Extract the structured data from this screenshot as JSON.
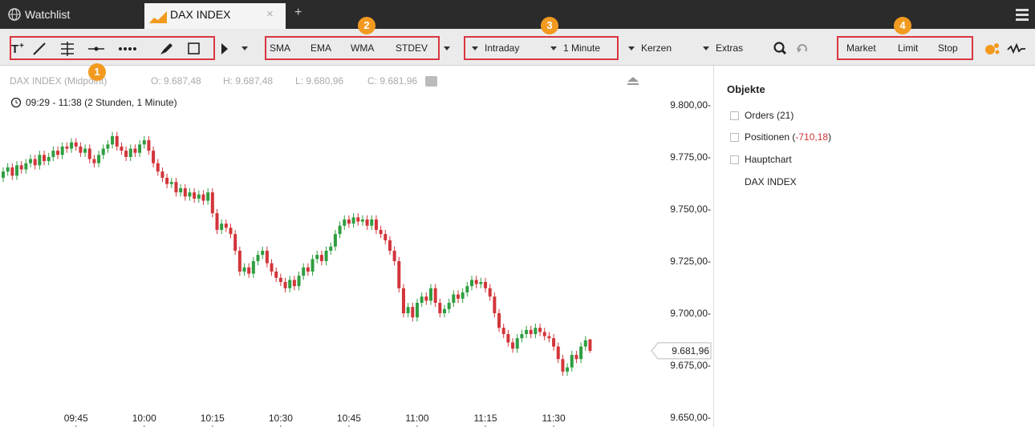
{
  "tabs": {
    "watchlist": "Watchlist",
    "active": "DAX INDEX",
    "close": "×",
    "add": "+"
  },
  "toolbar": {
    "indicators": [
      "SMA",
      "EMA",
      "WMA",
      "STDEV"
    ],
    "period": [
      "Intraday",
      "1 Minute"
    ],
    "chart_type": "Kerzen",
    "extras": "Extras",
    "orders": [
      "Market",
      "Limit",
      "Stop"
    ],
    "badges": [
      "1",
      "2",
      "3",
      "4"
    ]
  },
  "chart": {
    "type": "candlestick",
    "instrument": "DAX INDEX (Midpoint)",
    "ohlc_labels": [
      "O: 9.687,48",
      "H: 9.687,48",
      "L: 9.680,96",
      "C: 9.681,96"
    ],
    "range": "09:29 - 11:38 (2 Stunden, 1 Minute)",
    "up_color": "#2f9e41",
    "down_color": "#d2353a",
    "candles": [
      [
        9765,
        9770,
        9763,
        9768
      ],
      [
        9768,
        9772,
        9766,
        9770
      ],
      [
        9770,
        9772,
        9764,
        9766
      ],
      [
        9766,
        9773,
        9764,
        9771
      ],
      [
        9771,
        9773,
        9767,
        9769
      ],
      [
        9769,
        9774,
        9767,
        9772
      ],
      [
        9772,
        9776,
        9770,
        9774
      ],
      [
        9774,
        9776,
        9769,
        9771
      ],
      [
        9771,
        9778,
        9769,
        9776
      ],
      [
        9776,
        9778,
        9771,
        9773
      ],
      [
        9773,
        9777,
        9771,
        9775
      ],
      [
        9775,
        9780,
        9773,
        9778
      ],
      [
        9778,
        9780,
        9774,
        9776
      ],
      [
        9776,
        9782,
        9774,
        9780
      ],
      [
        9780,
        9782,
        9777,
        9779
      ],
      [
        9779,
        9784,
        9777,
        9782
      ],
      [
        9782,
        9784,
        9778,
        9780
      ],
      [
        9780,
        9782,
        9775,
        9777
      ],
      [
        9777,
        9781,
        9775,
        9779
      ],
      [
        9779,
        9781,
        9772,
        9774
      ],
      [
        9774,
        9776,
        9770,
        9772
      ],
      [
        9772,
        9778,
        9770,
        9776
      ],
      [
        9776,
        9781,
        9774,
        9779
      ],
      [
        9779,
        9783,
        9777,
        9781
      ],
      [
        9781,
        9787,
        9779,
        9785
      ],
      [
        9785,
        9787,
        9778,
        9780
      ],
      [
        9780,
        9782,
        9776,
        9778
      ],
      [
        9778,
        9780,
        9773,
        9775
      ],
      [
        9775,
        9781,
        9773,
        9779
      ],
      [
        9779,
        9781,
        9775,
        9777
      ],
      [
        9777,
        9783,
        9775,
        9781
      ],
      [
        9781,
        9785,
        9779,
        9783
      ],
      [
        9783,
        9785,
        9776,
        9778
      ],
      [
        9778,
        9780,
        9770,
        9772
      ],
      [
        9772,
        9774,
        9766,
        9768
      ],
      [
        9768,
        9770,
        9763,
        9765
      ],
      [
        9765,
        9767,
        9760,
        9762
      ],
      [
        9762,
        9765,
        9760,
        9763
      ],
      [
        9763,
        9765,
        9756,
        9758
      ],
      [
        9758,
        9762,
        9756,
        9760
      ],
      [
        9760,
        9762,
        9754,
        9756
      ],
      [
        9756,
        9760,
        9754,
        9758
      ],
      [
        9758,
        9760,
        9753,
        9755
      ],
      [
        9755,
        9759,
        9753,
        9757
      ],
      [
        9757,
        9759,
        9752,
        9754
      ],
      [
        9754,
        9760,
        9752,
        9758
      ],
      [
        9758,
        9760,
        9746,
        9748
      ],
      [
        9748,
        9750,
        9738,
        9740
      ],
      [
        9740,
        9745,
        9738,
        9743
      ],
      [
        9743,
        9745,
        9739,
        9741
      ],
      [
        9741,
        9743,
        9736,
        9738
      ],
      [
        9738,
        9740,
        9728,
        9730
      ],
      [
        9730,
        9732,
        9718,
        9720
      ],
      [
        9720,
        9724,
        9718,
        9722
      ],
      [
        9722,
        9724,
        9717,
        9719
      ],
      [
        9719,
        9727,
        9717,
        9725
      ],
      [
        9725,
        9730,
        9723,
        9728
      ],
      [
        9728,
        9732,
        9726,
        9730
      ],
      [
        9730,
        9732,
        9722,
        9724
      ],
      [
        9724,
        9726,
        9718,
        9720
      ],
      [
        9720,
        9722,
        9715,
        9717
      ],
      [
        9717,
        9719,
        9713,
        9715
      ],
      [
        9715,
        9717,
        9710,
        9712
      ],
      [
        9712,
        9718,
        9710,
        9716
      ],
      [
        9716,
        9718,
        9711,
        9713
      ],
      [
        9713,
        9720,
        9711,
        9718
      ],
      [
        9718,
        9724,
        9716,
        9722
      ],
      [
        9722,
        9724,
        9718,
        9720
      ],
      [
        9720,
        9728,
        9718,
        9726
      ],
      [
        9726,
        9730,
        9724,
        9728
      ],
      [
        9728,
        9730,
        9723,
        9725
      ],
      [
        9725,
        9732,
        9723,
        9730
      ],
      [
        9730,
        9734,
        9728,
        9732
      ],
      [
        9732,
        9740,
        9730,
        9738
      ],
      [
        9738,
        9744,
        9736,
        9742
      ],
      [
        9742,
        9747,
        9740,
        9745
      ],
      [
        9745,
        9747,
        9741,
        9743
      ],
      [
        9743,
        9748,
        9741,
        9746
      ],
      [
        9746,
        9748,
        9742,
        9744
      ],
      [
        9744,
        9747,
        9742,
        9745
      ],
      [
        9745,
        9747,
        9740,
        9742
      ],
      [
        9742,
        9747,
        9740,
        9745
      ],
      [
        9745,
        9747,
        9738,
        9740
      ],
      [
        9740,
        9742,
        9736,
        9738
      ],
      [
        9738,
        9740,
        9733,
        9735
      ],
      [
        9735,
        9737,
        9728,
        9730
      ],
      [
        9730,
        9732,
        9723,
        9725
      ],
      [
        9725,
        9727,
        9710,
        9712
      ],
      [
        9712,
        9714,
        9698,
        9700
      ],
      [
        9700,
        9705,
        9698,
        9703
      ],
      [
        9703,
        9705,
        9696,
        9698
      ],
      [
        9698,
        9707,
        9696,
        9705
      ],
      [
        9705,
        9710,
        9703,
        9708
      ],
      [
        9708,
        9710,
        9704,
        9706
      ],
      [
        9706,
        9714,
        9704,
        9712
      ],
      [
        9712,
        9714,
        9703,
        9705
      ],
      [
        9705,
        9707,
        9698,
        9700
      ],
      [
        9700,
        9704,
        9698,
        9702
      ],
      [
        9702,
        9707,
        9700,
        9705
      ],
      [
        9705,
        9711,
        9703,
        9709
      ],
      [
        9709,
        9711,
        9705,
        9707
      ],
      [
        9707,
        9712,
        9705,
        9710
      ],
      [
        9710,
        9715,
        9708,
        9713
      ],
      [
        9713,
        9718,
        9711,
        9716
      ],
      [
        9716,
        9718,
        9712,
        9714
      ],
      [
        9714,
        9717,
        9712,
        9715
      ],
      [
        9715,
        9717,
        9710,
        9712
      ],
      [
        9712,
        9714,
        9706,
        9708
      ],
      [
        9708,
        9710,
        9698,
        9700
      ],
      [
        9700,
        9702,
        9691,
        9693
      ],
      [
        9693,
        9695,
        9688,
        9690
      ],
      [
        9690,
        9692,
        9684,
        9686
      ],
      [
        9686,
        9688,
        9681,
        9683
      ],
      [
        9683,
        9690,
        9681,
        9688
      ],
      [
        9688,
        9692,
        9686,
        9690
      ],
      [
        9690,
        9694,
        9688,
        9692
      ],
      [
        9692,
        9694,
        9688,
        9690
      ],
      [
        9690,
        9695,
        9688,
        9693
      ],
      [
        9693,
        9695,
        9689,
        9691
      ],
      [
        9691,
        9693,
        9687,
        9689
      ],
      [
        9689,
        9691,
        9686,
        9688
      ],
      [
        9688,
        9690,
        9682,
        9684
      ],
      [
        9684,
        9686,
        9676,
        9678
      ],
      [
        9678,
        9680,
        9670,
        9672
      ],
      [
        9672,
        9676,
        9670,
        9674
      ],
      [
        9674,
        9682,
        9672,
        9680
      ],
      [
        9680,
        9682,
        9676,
        9678
      ],
      [
        9678,
        9686,
        9676,
        9684
      ],
      [
        9684,
        9689,
        9682,
        9687
      ],
      [
        9687.48,
        9687.48,
        9680.96,
        9681.96
      ]
    ],
    "ylim": [
      9645.4,
      9813.8
    ],
    "yticks": [
      {
        "value": 9800,
        "label": "9.800,00-"
      },
      {
        "value": 9775,
        "label": "9.775,00-"
      },
      {
        "value": 9750,
        "label": "9.750,00-"
      },
      {
        "value": 9725,
        "label": "9.725,00-"
      },
      {
        "value": 9700,
        "label": "9.700,00-"
      },
      {
        "value": 9675,
        "label": "9.675,00-"
      },
      {
        "value": 9650,
        "label": "9.650,00-"
      }
    ],
    "xticks": [
      {
        "value": 16,
        "label": "09:45"
      },
      {
        "value": 31,
        "label": "10:00"
      },
      {
        "value": 46,
        "label": "10:15"
      },
      {
        "value": 61,
        "label": "10:30"
      },
      {
        "value": 76,
        "label": "10:45"
      },
      {
        "value": 91,
        "label": "11:00"
      },
      {
        "value": 106,
        "label": "11:15"
      },
      {
        "value": 121,
        "label": "11:30"
      }
    ],
    "last_price": {
      "value": 9681.96,
      "label": "9.681,96"
    }
  },
  "panel": {
    "title": "Objekte",
    "orders": "Orders (21)",
    "positions_prefix": "Positionen (",
    "positions_value": "-710,18",
    "positions_suffix": ")",
    "main_chart": "Hauptchart",
    "instrument": "DAX INDEX"
  }
}
